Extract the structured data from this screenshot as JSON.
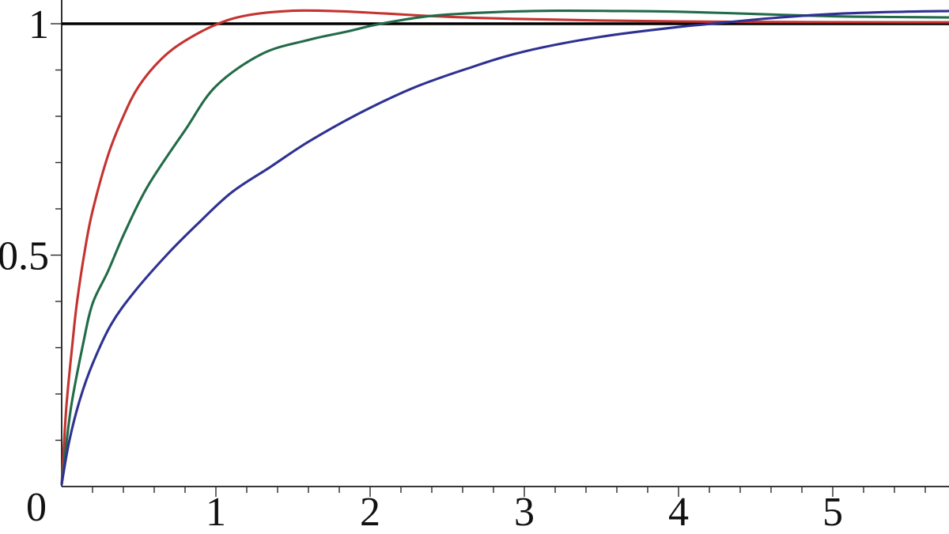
{
  "page": {
    "background": "#ffffff",
    "title": ""
  },
  "chart_data": {
    "type": "line",
    "title": "",
    "subtitle": "",
    "xlabel": "",
    "ylabel": "",
    "legend": "none",
    "grid": false,
    "x_range": [
      0,
      5.75
    ],
    "y_range": [
      0,
      1.05
    ],
    "x_axis": {
      "origin_label": "0",
      "major_ticks": [
        1,
        2,
        3,
        4,
        5
      ],
      "major_labels": [
        "1",
        "2",
        "3",
        "4",
        "5"
      ],
      "minor_step": 0.2
    },
    "y_axis": {
      "origin_label": "0",
      "major_ticks": [
        0.5,
        1
      ],
      "major_labels": [
        "0.5",
        "1"
      ],
      "minor_step": 0.1
    },
    "asymptote": {
      "y": 1,
      "color": "#000000"
    },
    "axis_color": "#1c1c1c",
    "series": [
      {
        "name": "red-curve-fast",
        "color": "#c43330",
        "peak": {
          "x": 1.5,
          "y": 1.028
        },
        "crosses_one_at": 1.0,
        "points": [
          [
            0,
            0.005
          ],
          [
            0.03,
            0.17
          ],
          [
            0.07,
            0.31
          ],
          [
            0.1,
            0.4
          ],
          [
            0.15,
            0.51
          ],
          [
            0.2,
            0.595
          ],
          [
            0.3,
            0.715
          ],
          [
            0.4,
            0.8
          ],
          [
            0.5,
            0.865
          ],
          [
            0.65,
            0.925
          ],
          [
            0.8,
            0.963
          ],
          [
            1.0,
            0.998
          ],
          [
            1.2,
            1.018
          ],
          [
            1.5,
            1.028
          ],
          [
            1.8,
            1.027
          ],
          [
            2.1,
            1.022
          ],
          [
            2.5,
            1.015
          ],
          [
            3.0,
            1.01
          ],
          [
            3.5,
            1.007
          ],
          [
            4.0,
            1.005
          ],
          [
            4.5,
            1.004
          ],
          [
            5.0,
            1.0035
          ],
          [
            5.76,
            1.003
          ]
        ]
      },
      {
        "name": "green-curve-medium",
        "color": "#226b48",
        "peak": {
          "x": 3.2,
          "y": 1.028
        },
        "crosses_one_at": 2.07,
        "points": [
          [
            0,
            0.005
          ],
          [
            0.06,
            0.17
          ],
          [
            0.14,
            0.31
          ],
          [
            0.2,
            0.395
          ],
          [
            0.3,
            0.465
          ],
          [
            0.41,
            0.55
          ],
          [
            0.56,
            0.65
          ],
          [
            0.8,
            0.77
          ],
          [
            1.0,
            0.865
          ],
          [
            1.3,
            0.935
          ],
          [
            1.6,
            0.965
          ],
          [
            1.85,
            0.983
          ],
          [
            2.07,
            1.0
          ],
          [
            2.4,
            1.017
          ],
          [
            2.8,
            1.025
          ],
          [
            3.2,
            1.028
          ],
          [
            3.6,
            1.0275
          ],
          [
            4.0,
            1.026
          ],
          [
            4.5,
            1.021
          ],
          [
            5.0,
            1.016
          ],
          [
            5.4,
            1.0145
          ],
          [
            5.76,
            1.0135
          ]
        ]
      },
      {
        "name": "blue-curve-slow",
        "color": "#2e3192",
        "peak": {
          "x": 5.76,
          "y": 1.0275
        },
        "crosses_one_at": 4.22,
        "points": [
          [
            0,
            0.005
          ],
          [
            0.05,
            0.1
          ],
          [
            0.12,
            0.19
          ],
          [
            0.2,
            0.265
          ],
          [
            0.32,
            0.35
          ],
          [
            0.47,
            0.42
          ],
          [
            0.68,
            0.5
          ],
          [
            0.88,
            0.567
          ],
          [
            1.1,
            0.635
          ],
          [
            1.35,
            0.69
          ],
          [
            1.6,
            0.745
          ],
          [
            1.91,
            0.803
          ],
          [
            2.27,
            0.86
          ],
          [
            2.63,
            0.903
          ],
          [
            3.0,
            0.94
          ],
          [
            3.5,
            0.972
          ],
          [
            4.0,
            0.993
          ],
          [
            4.22,
            1.0
          ],
          [
            4.6,
            1.012
          ],
          [
            5.0,
            1.021
          ],
          [
            5.4,
            1.0255
          ],
          [
            5.76,
            1.0275
          ]
        ]
      }
    ]
  }
}
